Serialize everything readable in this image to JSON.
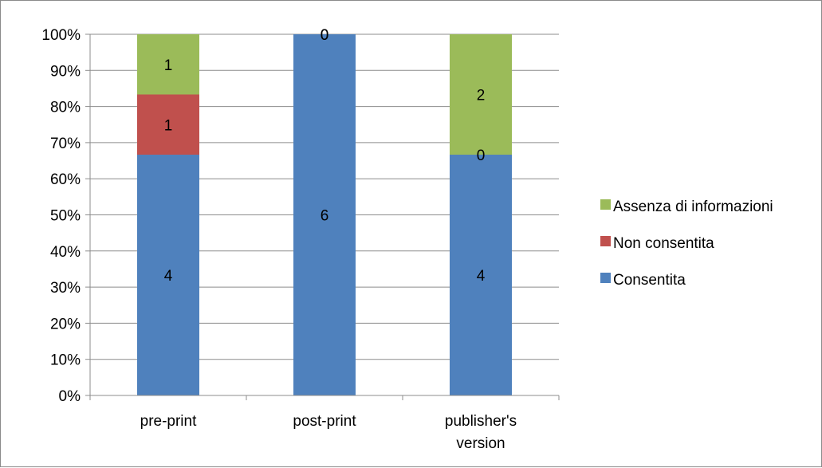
{
  "chart_data": {
    "type": "bar",
    "stacked": true,
    "percent": true,
    "categories": [
      "pre-print",
      "post-print",
      "publisher's version"
    ],
    "category_lines": [
      [
        "pre-print"
      ],
      [
        "post-print"
      ],
      [
        "publisher's",
        "version"
      ]
    ],
    "series": [
      {
        "name": "Consentita",
        "values": [
          4,
          6,
          4
        ],
        "color": "#4f81bd"
      },
      {
        "name": "Non consentita",
        "values": [
          1,
          0,
          0
        ],
        "color": "#c0504d"
      },
      {
        "name": "Assenza di informazioni",
        "values": [
          1,
          0,
          2
        ],
        "color": "#9bbb59"
      }
    ],
    "ylim": [
      0,
      100
    ],
    "yticks": [
      "0%",
      "10%",
      "20%",
      "30%",
      "40%",
      "50%",
      "60%",
      "70%",
      "80%",
      "90%",
      "100%"
    ],
    "grid": true,
    "legend": "right"
  }
}
